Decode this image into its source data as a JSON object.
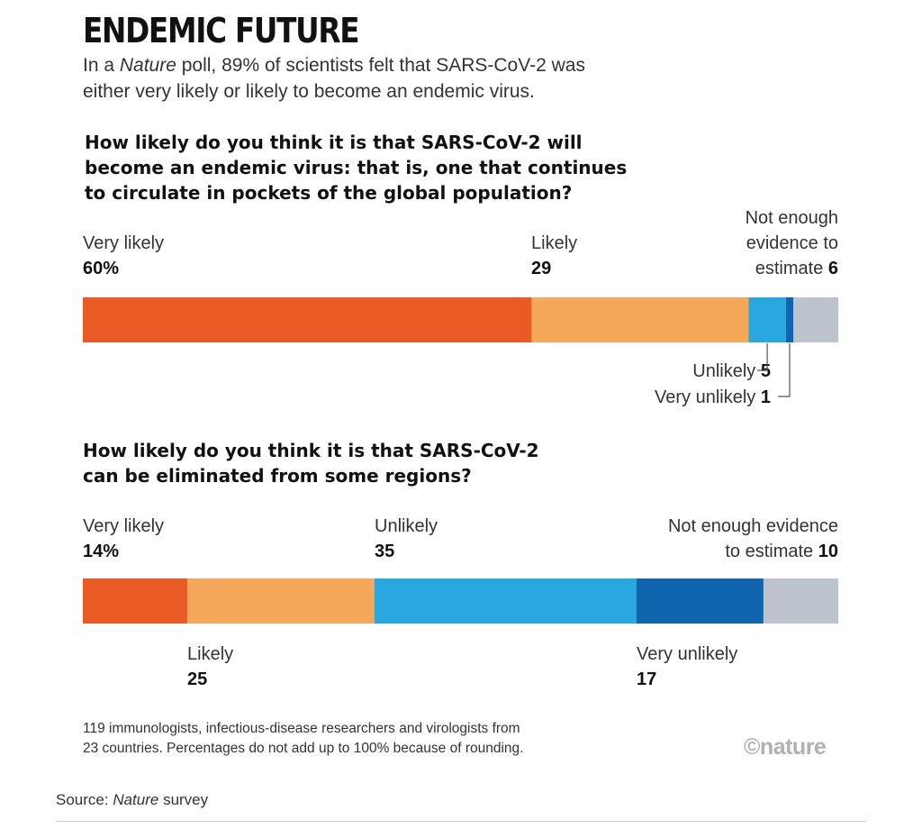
{
  "header": {
    "title": "ENDEMIC FUTURE",
    "subtitle_prefix": "In a ",
    "subtitle_em": "Nature",
    "subtitle_line1_rest": " poll, 89% of scientists felt that SARS-CoV-2 was",
    "subtitle_line2": "either very likely or likely to become an endemic virus."
  },
  "colors": {
    "very_likely": "#e95a24",
    "likely": "#f5a85a",
    "unlikely": "#29a8e0",
    "very_unlikely": "#0f66ae",
    "not_enough_evidence": "#bcc3cc"
  },
  "chart_data": [
    {
      "type": "bar",
      "stacked": true,
      "orientation": "horizontal",
      "title": "How likely do you think it is that SARS-CoV-2 will become an endemic virus: that is, one that continues to circulate in pockets of the global population?",
      "title_lines": [
        "How likely do you think it is that SARS-CoV-2 will",
        "become an endemic virus: that is, one that continues",
        "to circulate in pockets of the global population?"
      ],
      "unit": "%",
      "segments": [
        {
          "label": "Very likely",
          "value": 60,
          "value_text": "60%",
          "color": "#e95a24"
        },
        {
          "label": "Likely",
          "value": 29,
          "value_text": "29",
          "color": "#f5a85a"
        },
        {
          "label": "Unlikely",
          "value": 5,
          "value_text": "5",
          "color": "#29a8e0"
        },
        {
          "label": "Very unlikely",
          "value": 1,
          "value_text": "1",
          "color": "#0f66ae"
        },
        {
          "label": "Not enough evidence to estimate",
          "value": 6,
          "value_text": "6",
          "color": "#bcc3cc"
        }
      ],
      "label_text": {
        "very_likely": "Very likely",
        "likely": "Likely",
        "unlikely": "Unlikely",
        "very_unlikely": "Very unlikely",
        "not_enough_lines": [
          "Not enough",
          "evidence to",
          "estimate"
        ]
      }
    },
    {
      "type": "bar",
      "stacked": true,
      "orientation": "horizontal",
      "title": "How likely do you think it is that SARS-CoV-2 can be eliminated from some regions?",
      "title_lines": [
        "How likely do you think it is that SARS-CoV-2",
        "can be eliminated from some regions?"
      ],
      "unit": "%",
      "segments": [
        {
          "label": "Very likely",
          "value": 14,
          "value_text": "14%",
          "color": "#e95a24"
        },
        {
          "label": "Likely",
          "value": 25,
          "value_text": "25",
          "color": "#f5a85a"
        },
        {
          "label": "Unlikely",
          "value": 35,
          "value_text": "35",
          "color": "#29a8e0"
        },
        {
          "label": "Very unlikely",
          "value": 17,
          "value_text": "17",
          "color": "#0f66ae"
        },
        {
          "label": "Not enough evidence to estimate",
          "value": 10,
          "value_text": "10",
          "color": "#bcc3cc"
        }
      ],
      "label_text": {
        "very_likely": "Very likely",
        "likely": "Likely",
        "unlikely": "Unlikely",
        "very_unlikely": "Very unlikely",
        "not_enough_lines": [
          "Not enough evidence",
          "to estimate"
        ]
      }
    }
  ],
  "footnote": {
    "line1": "119 immunologists, infectious-disease researchers and virologists from",
    "line2": "23 countries. Percentages do not add up to 100% because of rounding."
  },
  "logo": "©nature",
  "source": {
    "prefix": "Source:  ",
    "em": "Nature",
    "suffix": " survey"
  }
}
